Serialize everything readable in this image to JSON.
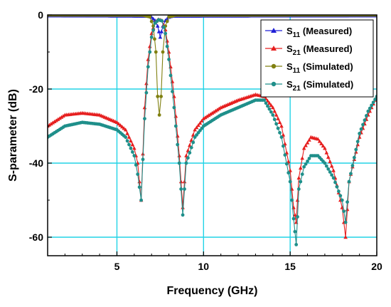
{
  "chart_data": {
    "type": "line",
    "xlabel": "Frequency (GHz)",
    "ylabel": "S-parameter (dB)",
    "xlim": [
      1,
      20
    ],
    "ylim": [
      -65,
      0
    ],
    "x_ticks": [
      5,
      10,
      15,
      20
    ],
    "y_ticks": [
      0,
      -20,
      -40,
      -60
    ],
    "grid": true,
    "legend_position": "top-right",
    "series": [
      {
        "name": "S11 (Measured)",
        "label_main": "S",
        "label_sub": "11",
        "label_rest": " (Measured)",
        "color": "#1f1fd6",
        "marker": "triangle",
        "x": [
          1,
          6.8,
          7.0,
          7.2,
          7.35,
          7.5,
          7.65,
          7.8,
          8.0,
          8.2,
          20
        ],
        "y": [
          -0.2,
          -0.3,
          -0.6,
          -1.5,
          -3.0,
          -6.0,
          -3.0,
          -1.5,
          -0.6,
          -0.3,
          -0.2
        ]
      },
      {
        "name": "S21 (Measured)",
        "label_main": "S",
        "label_sub": "21",
        "label_rest": " (Measured)",
        "color": "#e61e1e",
        "marker": "triangle",
        "x": [
          1,
          2,
          3,
          4,
          5,
          5.5,
          6.0,
          6.2,
          6.4,
          6.6,
          6.8,
          7.0,
          7.2,
          7.4,
          7.6,
          7.8,
          8.0,
          8.3,
          8.6,
          8.8,
          9.0,
          9.5,
          10,
          11,
          12,
          13,
          13.5,
          14,
          14.5,
          15.0,
          15.2,
          15.35,
          15.5,
          15.8,
          16.2,
          16.6,
          17.0,
          17.5,
          18.0,
          18.2,
          18.4,
          19,
          19.5,
          20
        ],
        "y": [
          -30,
          -27,
          -26.5,
          -27,
          -29,
          -31,
          -36,
          -40,
          -50,
          -25,
          -12,
          -5,
          -2,
          -1.2,
          -1.5,
          -4,
          -10,
          -22,
          -38,
          -52,
          -38,
          -31,
          -28,
          -25,
          -23,
          -21.5,
          -22,
          -25,
          -30,
          -42,
          -52,
          -56,
          -44,
          -36,
          -33,
          -33.5,
          -36,
          -42,
          -52,
          -60,
          -45,
          -33,
          -27,
          -22
        ]
      },
      {
        "name": "S11 (Simulated)",
        "label_main": "S",
        "label_sub": "11",
        "label_rest": " (Simulated)",
        "color": "#808010",
        "marker": "circle",
        "x": [
          1,
          6.5,
          6.9,
          7.1,
          7.25,
          7.35,
          7.45,
          7.55,
          7.65,
          7.8,
          8.0,
          8.4,
          20
        ],
        "y": [
          0,
          -0.05,
          -0.5,
          -3,
          -10,
          -22,
          -27,
          -22,
          -10,
          -3,
          -0.5,
          -0.05,
          0
        ]
      },
      {
        "name": "S21 (Simulated)",
        "label_main": "S",
        "label_sub": "21",
        "label_rest": " (Simulated)",
        "color": "#1f8f8a",
        "marker": "circle",
        "x": [
          1,
          2,
          3,
          4,
          5,
          5.5,
          6.0,
          6.2,
          6.4,
          6.6,
          6.8,
          7.0,
          7.2,
          7.4,
          7.6,
          7.8,
          8.0,
          8.3,
          8.6,
          8.8,
          9.0,
          9.5,
          10,
          11,
          12,
          13,
          13.5,
          14,
          14.5,
          15.0,
          15.2,
          15.35,
          15.5,
          15.8,
          16.2,
          16.6,
          17.0,
          17.5,
          18.0,
          18.2,
          18.4,
          19,
          19.5,
          20
        ],
        "y": [
          -33,
          -30,
          -29,
          -29.5,
          -31,
          -33,
          -38,
          -43,
          -50,
          -28,
          -14,
          -6,
          -2.2,
          -1.3,
          -1.6,
          -5,
          -12,
          -25,
          -40,
          -54,
          -40,
          -33,
          -30,
          -27,
          -25,
          -23,
          -23,
          -27,
          -33,
          -45,
          -55,
          -62,
          -47,
          -41,
          -38,
          -38,
          -40,
          -44,
          -50,
          -56,
          -45,
          -32,
          -26,
          -22
        ]
      }
    ]
  }
}
